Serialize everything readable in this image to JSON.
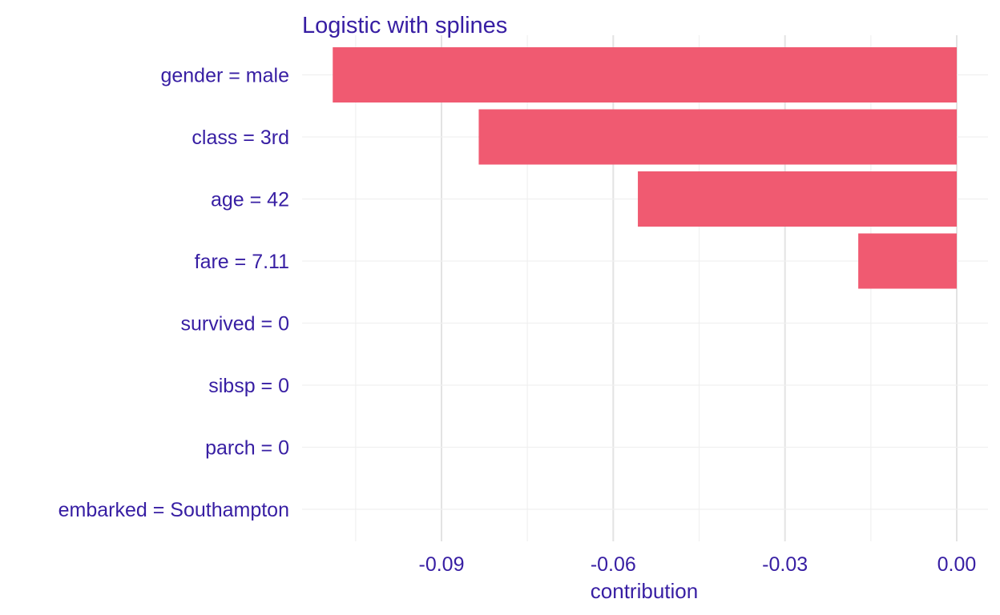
{
  "chart_data": {
    "type": "bar",
    "orientation": "horizontal",
    "title": "Logistic with splines",
    "xlabel": "contribution",
    "ylabel": "",
    "categories": [
      "gender = male",
      "class = 3rd",
      "age = 42",
      "fare = 7.11",
      "survived = 0",
      "sibsp = 0",
      "parch = 0",
      "embarked = Southampton"
    ],
    "values": [
      -0.109,
      -0.0835,
      -0.0557,
      -0.0172,
      0,
      0,
      0,
      0
    ],
    "xlim": [
      -0.1175,
      0.0055
    ],
    "xticks": [
      -0.09,
      -0.06,
      -0.03,
      0.0
    ],
    "xtick_labels": [
      "-0.09",
      "-0.06",
      "-0.03",
      "0.00"
    ],
    "bar_color": "#f05a71",
    "text_color": "#371ea3",
    "grid": true,
    "legend": "none"
  }
}
